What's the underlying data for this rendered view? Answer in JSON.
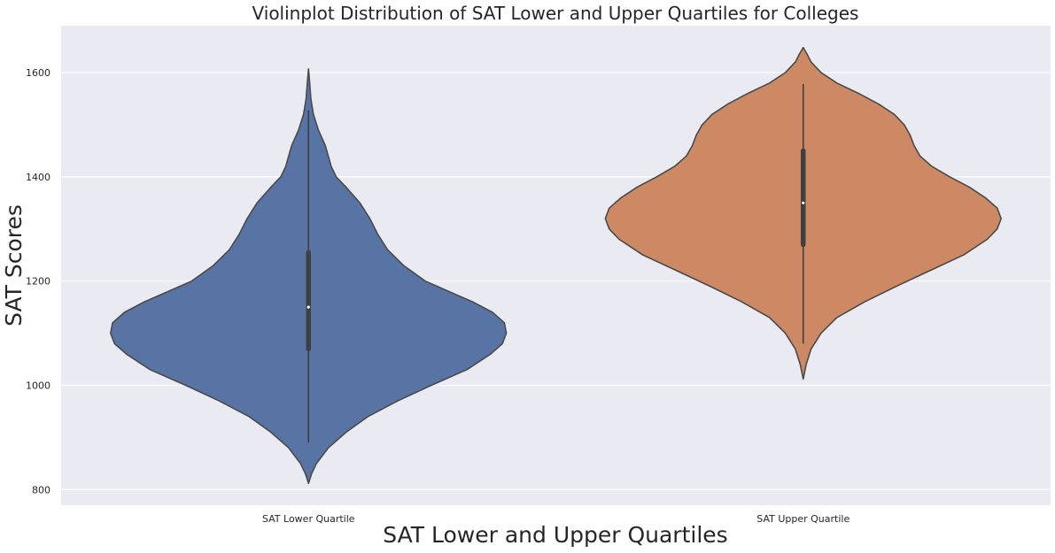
{
  "chart_data": {
    "type": "violin",
    "title": "Violinplot Distribution of SAT Lower and Upper Quartiles for Colleges",
    "xlabel": "SAT Lower and Upper Quartiles",
    "ylabel": "SAT Scores",
    "ylim": [
      770,
      1690
    ],
    "yticks": [
      800,
      1000,
      1200,
      1400,
      1600
    ],
    "grid": true,
    "categories": [
      "SAT Lower Quartile",
      "SAT Upper Quartile"
    ],
    "series": [
      {
        "color": "#5874A4",
        "kde_min": 812,
        "kde_max": 1607,
        "whisker_low": 890,
        "whisker_high": 1528,
        "q1": 1070,
        "median": 1150,
        "q3": 1255,
        "density_profile": [
          [
            812,
            0.0
          ],
          [
            830,
            0.015
          ],
          [
            850,
            0.04
          ],
          [
            880,
            0.1
          ],
          [
            910,
            0.19
          ],
          [
            940,
            0.3
          ],
          [
            970,
            0.45
          ],
          [
            1000,
            0.62
          ],
          [
            1030,
            0.8
          ],
          [
            1060,
            0.92
          ],
          [
            1080,
            0.98
          ],
          [
            1100,
            1.0
          ],
          [
            1120,
            0.99
          ],
          [
            1140,
            0.93
          ],
          [
            1160,
            0.83
          ],
          [
            1180,
            0.71
          ],
          [
            1200,
            0.59
          ],
          [
            1230,
            0.48
          ],
          [
            1260,
            0.4
          ],
          [
            1290,
            0.35
          ],
          [
            1320,
            0.31
          ],
          [
            1350,
            0.26
          ],
          [
            1380,
            0.19
          ],
          [
            1400,
            0.14
          ],
          [
            1420,
            0.115
          ],
          [
            1440,
            0.1
          ],
          [
            1460,
            0.085
          ],
          [
            1490,
            0.05
          ],
          [
            1520,
            0.025
          ],
          [
            1550,
            0.012
          ],
          [
            1580,
            0.006
          ],
          [
            1607,
            0.0
          ]
        ]
      },
      {
        "color": "#CC8963",
        "kde_min": 1012,
        "kde_max": 1648,
        "whisker_low": 1080,
        "whisker_high": 1578,
        "q1": 1270,
        "median": 1350,
        "q3": 1450,
        "density_profile": [
          [
            1012,
            0.0
          ],
          [
            1040,
            0.015
          ],
          [
            1070,
            0.04
          ],
          [
            1100,
            0.09
          ],
          [
            1130,
            0.17
          ],
          [
            1160,
            0.31
          ],
          [
            1190,
            0.47
          ],
          [
            1220,
            0.64
          ],
          [
            1250,
            0.81
          ],
          [
            1280,
            0.93
          ],
          [
            1300,
            0.98
          ],
          [
            1320,
            1.0
          ],
          [
            1340,
            0.98
          ],
          [
            1360,
            0.92
          ],
          [
            1380,
            0.84
          ],
          [
            1400,
            0.74
          ],
          [
            1420,
            0.65
          ],
          [
            1440,
            0.59
          ],
          [
            1460,
            0.56
          ],
          [
            1480,
            0.54
          ],
          [
            1500,
            0.51
          ],
          [
            1520,
            0.46
          ],
          [
            1540,
            0.38
          ],
          [
            1560,
            0.28
          ],
          [
            1580,
            0.17
          ],
          [
            1600,
            0.09
          ],
          [
            1620,
            0.04
          ],
          [
            1635,
            0.02
          ],
          [
            1648,
            0.0
          ]
        ]
      }
    ]
  }
}
